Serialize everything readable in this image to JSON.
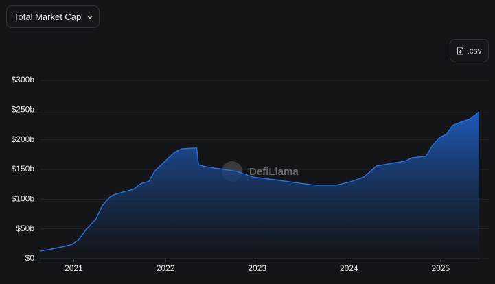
{
  "header": {
    "dropdown": "Total Market Cap",
    "csv": ".csv"
  },
  "chart_data": {
    "type": "area",
    "watermark": "DefiLlama",
    "color": "#2a6fdb",
    "grid": true,
    "x": [
      2020.63,
      2020.72,
      2020.87,
      2020.98,
      2021.05,
      2021.13,
      2021.24,
      2021.31,
      2021.39,
      2021.43,
      2021.54,
      2021.65,
      2021.73,
      2021.82,
      2021.88,
      2021.99,
      2022.1,
      2022.18,
      2022.34,
      2022.36,
      2022.44,
      2022.59,
      2022.78,
      2022.96,
      2023.19,
      2023.41,
      2023.64,
      2023.86,
      2024.01,
      2024.16,
      2024.3,
      2024.46,
      2024.61,
      2024.69,
      2024.84,
      2024.91,
      2024.99,
      2025.06,
      2025.13,
      2025.22,
      2025.32,
      2025.42
    ],
    "values": [
      12.7,
      15,
      19.6,
      24,
      31,
      48,
      66,
      89,
      103,
      107,
      112,
      116.5,
      126,
      130,
      146.5,
      163,
      179,
      184.6,
      186,
      158,
      154.6,
      151,
      146.5,
      137,
      132.7,
      128,
      123.5,
      123.5,
      129,
      137,
      155.8,
      160,
      164,
      169.6,
      172,
      190,
      204,
      209,
      224,
      229.6,
      235,
      247
    ],
    "xlim": [
      2020.63,
      2025.42
    ],
    "xticks": [
      2021,
      2022,
      2023,
      2024,
      2025
    ],
    "ylim": [
      0,
      300
    ],
    "yticks": [
      {
        "value": 0,
        "label": "$0"
      },
      {
        "value": 50,
        "label": "$50b"
      },
      {
        "value": 100,
        "label": "$100b"
      },
      {
        "value": 150,
        "label": "$150b"
      },
      {
        "value": 200,
        "label": "$200b"
      },
      {
        "value": 250,
        "label": "$250b"
      },
      {
        "value": 300,
        "label": "$300b"
      }
    ]
  }
}
